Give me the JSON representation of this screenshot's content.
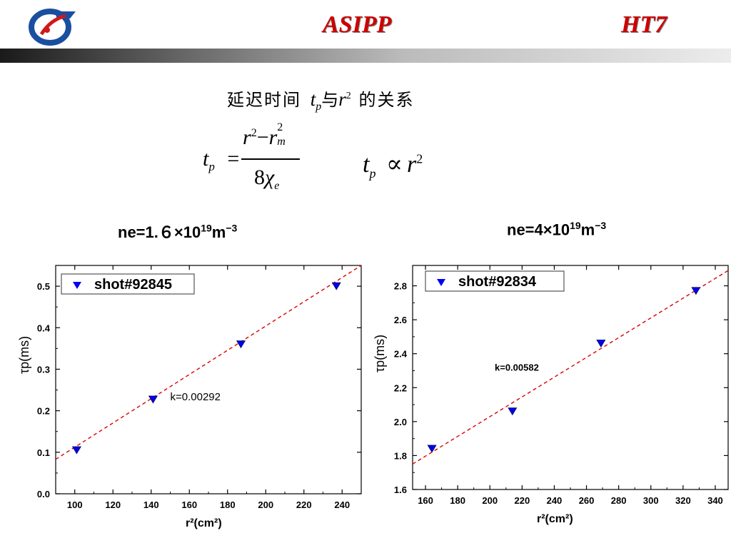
{
  "header": {
    "title_left": "ASIPP",
    "title_right": "HT7",
    "logo_icon": "asipp-logo-icon"
  },
  "heading": {
    "prefix": "延迟时间",
    "t": "t",
    "p": "p",
    "mid": "与",
    "r": "r",
    "sup2": "2",
    "suffix": "的关系"
  },
  "formula": {
    "lhs_t": "t",
    "lhs_p": "p",
    "equals": "=",
    "num_r": "r",
    "num_sup": "2",
    "minus": "−",
    "num_rm": "r",
    "num_rm_sup": "2",
    "num_rm_sub": "m",
    "den_8": "8",
    "den_chi": "χ",
    "den_sub": "e",
    "prop_t": "t",
    "prop_p": "p",
    "prop_sym": "∝",
    "prop_r": "r",
    "prop_sup": "2"
  },
  "labels": {
    "left": {
      "base": "ne=1.６×10",
      "exp": "19",
      "unit": "m",
      "unit_exp": "−3"
    },
    "right": {
      "base": "ne=4×10",
      "exp": "19",
      "unit": "m",
      "unit_exp": "−3"
    }
  },
  "chart_data": [
    {
      "type": "scatter",
      "legend": "shot#92845",
      "legend_position": "top-left",
      "xlabel": "r²(cm²)",
      "ylabel": "τp(ms)",
      "xlim": [
        90,
        250
      ],
      "ylim": [
        0.0,
        0.55
      ],
      "xticks": [
        100,
        120,
        140,
        160,
        180,
        200,
        220,
        240
      ],
      "yticks": [
        0.0,
        0.1,
        0.2,
        0.3,
        0.4,
        0.5
      ],
      "ytick_format": 1,
      "points": {
        "x": [
          101,
          141,
          187,
          237
        ],
        "y": [
          0.105,
          0.227,
          0.36,
          0.5
        ]
      },
      "fit": {
        "x": [
          90,
          250
        ],
        "y": [
          0.083,
          0.55
        ]
      },
      "annotation": {
        "text": "k=0.00292",
        "x": 150,
        "y": 0.225,
        "bold": false
      },
      "marker_color": "#0000ee",
      "fit_color": "#dd0000",
      "grid": false
    },
    {
      "type": "scatter",
      "legend": "shot#92834",
      "legend_position": "top-left",
      "xlabel": "r²(cm²)",
      "ylabel": "τp(ms)",
      "xlim": [
        152,
        348
      ],
      "ylim": [
        1.6,
        2.92
      ],
      "xticks": [
        160,
        180,
        200,
        220,
        240,
        260,
        280,
        300,
        320,
        340
      ],
      "yticks": [
        1.6,
        1.8,
        2.0,
        2.2,
        2.4,
        2.6,
        2.8
      ],
      "ytick_format": 1,
      "points": {
        "x": [
          164,
          214,
          269,
          328
        ],
        "y": [
          1.84,
          2.06,
          2.46,
          2.77
        ]
      },
      "fit": {
        "x": [
          152,
          348
        ],
        "y": [
          1.75,
          2.89
        ]
      },
      "annotation": {
        "text": "k=0.00582",
        "x": 203,
        "y": 2.3,
        "bold": true
      },
      "marker_color": "#0000ee",
      "fit_color": "#dd0000",
      "grid": false
    }
  ]
}
